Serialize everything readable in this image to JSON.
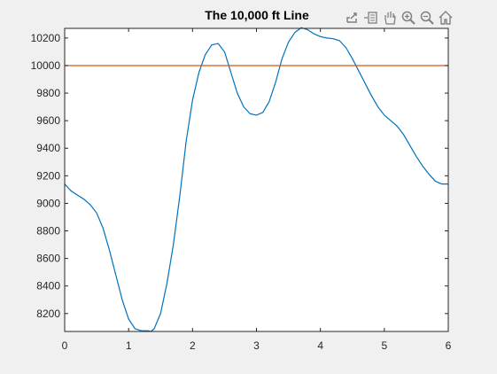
{
  "window": {
    "background": "#f0f0f0"
  },
  "toolbar": {
    "icons": [
      "export-icon",
      "data-cursor-icon",
      "pan-hand-icon",
      "zoom-in-icon",
      "zoom-out-icon",
      "home-icon"
    ]
  },
  "colors": {
    "series": "#0072BD",
    "reference_line": "#D95319",
    "axes": "#262626",
    "plot_bg": "#ffffff"
  },
  "chart_data": {
    "type": "line",
    "title": "The 10,000 ft Line",
    "xlabel": "",
    "ylabel": "",
    "xlim": [
      0,
      6
    ],
    "ylim": [
      8070,
      10270
    ],
    "xticks": [
      0,
      1,
      2,
      3,
      4,
      5,
      6
    ],
    "yticks": [
      8200,
      8400,
      8600,
      8800,
      9000,
      9200,
      9400,
      9600,
      9800,
      10000,
      10200
    ],
    "xtick_labels": [
      "0",
      "1",
      "2",
      "3",
      "4",
      "5",
      "6"
    ],
    "ytick_labels": [
      "8200",
      "8400",
      "8600",
      "8800",
      "9000",
      "9200",
      "9400",
      "9600",
      "9800",
      "10000",
      "10200"
    ],
    "grid": false,
    "series": [
      {
        "x": [
          0,
          0.1,
          0.2,
          0.3,
          0.4,
          0.5,
          0.6,
          0.7,
          0.8,
          0.9,
          1.0,
          1.1,
          1.2,
          1.3,
          1.35,
          1.4,
          1.5,
          1.6,
          1.7,
          1.8,
          1.9,
          2.0,
          2.1,
          2.2,
          2.3,
          2.4,
          2.5,
          2.6,
          2.7,
          2.8,
          2.9,
          3.0,
          3.1,
          3.2,
          3.3,
          3.4,
          3.5,
          3.6,
          3.7,
          3.8,
          3.9,
          4.0,
          4.1,
          4.2,
          4.3,
          4.4,
          4.5,
          4.6,
          4.7,
          4.8,
          4.9,
          5.0,
          5.1,
          5.2,
          5.3,
          5.4,
          5.5,
          5.6,
          5.7,
          5.8,
          5.9,
          6.0
        ],
        "y": [
          9140,
          9090,
          9060,
          9030,
          8990,
          8930,
          8820,
          8660,
          8480,
          8300,
          8160,
          8090,
          8075,
          8075,
          8070,
          8090,
          8200,
          8420,
          8700,
          9050,
          9450,
          9750,
          9950,
          10080,
          10150,
          10160,
          10100,
          9950,
          9800,
          9700,
          9650,
          9640,
          9660,
          9740,
          9880,
          10050,
          10170,
          10240,
          10275,
          10260,
          10230,
          10210,
          10200,
          10195,
          10180,
          10130,
          10050,
          9960,
          9870,
          9780,
          9700,
          9640,
          9600,
          9560,
          9500,
          9420,
          9340,
          9270,
          9210,
          9160,
          9140,
          9140
        ]
      },
      {
        "x": [
          0,
          6
        ],
        "y": [
          10000,
          10000
        ]
      }
    ]
  }
}
